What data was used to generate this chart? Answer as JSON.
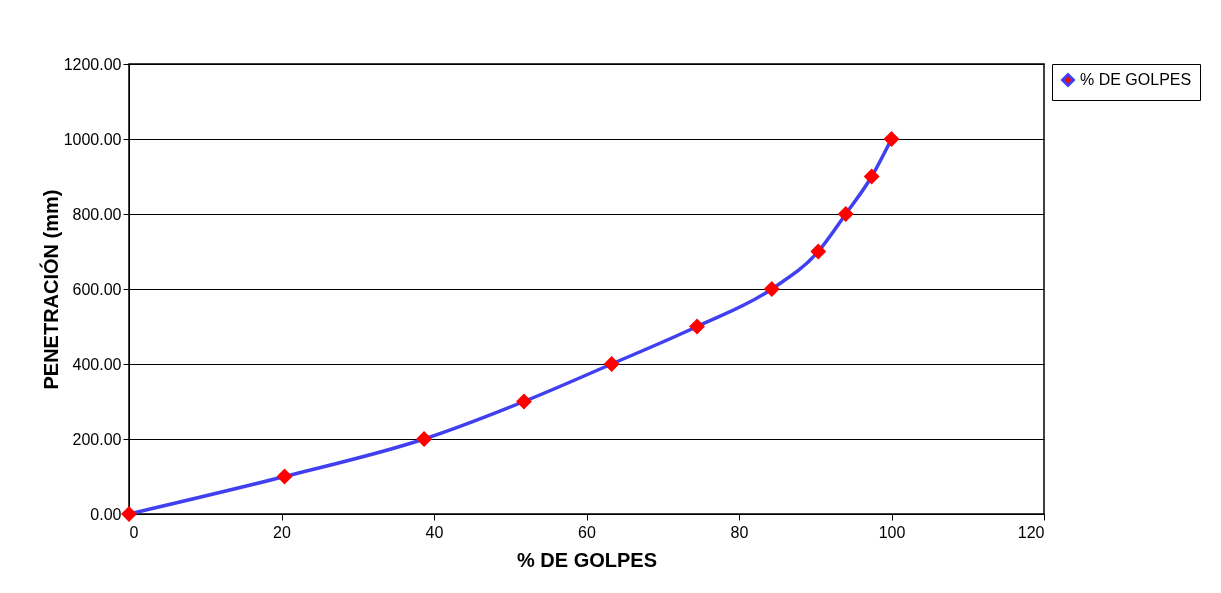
{
  "chart_data": {
    "type": "line",
    "xlabel": "% DE GOLPES",
    "ylabel": "PENETRACIÓN (mm)",
    "x": [
      0,
      20.4,
      38.7,
      51.8,
      63.3,
      74.5,
      84.3,
      90.4,
      94.0,
      97.4,
      100
    ],
    "series": [
      {
        "name": "% DE GOLPES",
        "color": "#4040f0",
        "values": [
          0,
          100,
          200,
          300,
          400,
          500,
          600,
          700,
          800,
          900,
          1000
        ]
      }
    ],
    "xlim": [
      0,
      120
    ],
    "xticks": [
      0,
      20,
      40,
      60,
      80,
      100,
      120
    ],
    "ylim": [
      0,
      1200
    ],
    "yticks": [
      {
        "value": 0,
        "label": "0.00"
      },
      {
        "value": 200,
        "label": "200.00"
      },
      {
        "value": 400,
        "label": "400.00"
      },
      {
        "value": 600,
        "label": "600.00"
      },
      {
        "value": 800,
        "label": "800.00"
      },
      {
        "value": 1000,
        "label": "1000.00"
      },
      {
        "value": 1200,
        "label": "1200.00"
      }
    ],
    "grid": "y",
    "legend": "top right",
    "marker": "diamond",
    "line_style": "solid"
  }
}
